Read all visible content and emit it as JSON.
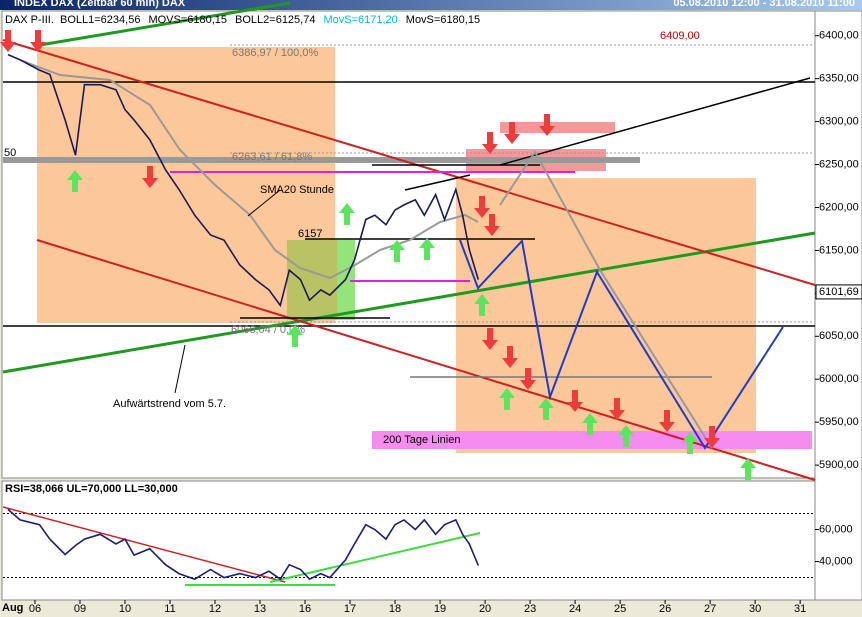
{
  "window_title": "INDEX DAX (Zeitbar 60 min) DAX",
  "date_range": "05.08.2010 12:00 - 31.08.2010 11:00",
  "chart_data": [
    {
      "type": "line",
      "title": "DAX P-III.",
      "indicators": [
        "BOLL1=6234,56",
        "MOVS=6180,15",
        "BOLL2=6125,74",
        "MovS=6171,20",
        "MovS=6180,15"
      ],
      "x": [
        -0.6,
        -0.33,
        0.1,
        0.33,
        0.67,
        0.9,
        1.1,
        1.45,
        1.8,
        2.0,
        2.2,
        2.55,
        2.9,
        3.2,
        3.55,
        3.9,
        4.2,
        4.55,
        4.9,
        5.2,
        5.45,
        5.65,
        5.9,
        6.1,
        6.35,
        6.55,
        6.9,
        7.1,
        7.35,
        7.55,
        7.8,
        8.0,
        8.2,
        8.45,
        8.65,
        8.9,
        9.1,
        9.35,
        9.5,
        9.65,
        9.85
      ],
      "series": [
        {
          "name": "DAX",
          "color": "#1a1a5a",
          "values": [
            6378,
            6372,
            6360,
            6355,
            6302,
            6261,
            6343,
            6343,
            6337,
            6314,
            6302,
            6279,
            6244,
            6221,
            6191,
            6168,
            6162,
            6133,
            6116,
            6104,
            6086,
            6127,
            6116,
            6092,
            6104,
            6098,
            6116,
            6139,
            6186,
            6191,
            6180,
            6197,
            6203,
            6209,
            6191,
            6215,
            6186,
            6221,
            6191,
            6151,
            6116
          ]
        }
      ],
      "xlim": [
        -0.71,
        17.33
      ],
      "ylim": [
        5885,
        6409
      ],
      "yticks": [
        {
          "value": 6400,
          "label": "6400,00"
        },
        {
          "value": 6350,
          "label": "6350,00"
        },
        {
          "value": 6300,
          "label": "6300,00"
        },
        {
          "value": 6250,
          "label": "6250,00"
        },
        {
          "value": 6200,
          "label": "6200,00"
        },
        {
          "value": 6150,
          "label": "6150,00"
        },
        {
          "value": 6100,
          "label": "6100,00"
        },
        {
          "value": 6050,
          "label": "6050,00"
        },
        {
          "value": 6000,
          "label": "6000,00"
        },
        {
          "value": 5950,
          "label": "5950,00"
        },
        {
          "value": 5900,
          "label": "5900,00"
        }
      ],
      "last_price": {
        "value": 6101.69,
        "label": "6101,69"
      },
      "annotations": [
        "6409,00",
        "6386,97 / 100,0%",
        "6263,61 / 61,8%",
        "50",
        "SMA20 Stunde",
        "6157",
        "6066,04 / 0,0%",
        "Aufwärtstrend vom 5.7.",
        "200 Tage Linien"
      ]
    },
    {
      "type": "line",
      "title": "RSI=38,066 UL=70,000 LL=30,000",
      "month_label": "Aug",
      "x": [
        -0.6,
        -0.33,
        0.1,
        0.33,
        0.67,
        0.9,
        1.1,
        1.45,
        1.8,
        2.0,
        2.2,
        2.55,
        2.9,
        3.2,
        3.55,
        3.9,
        4.2,
        4.55,
        4.9,
        5.2,
        5.45,
        5.65,
        5.9,
        6.1,
        6.35,
        6.55,
        6.9,
        7.1,
        7.35,
        7.55,
        7.8,
        8.0,
        8.2,
        8.45,
        8.65,
        8.9,
        9.1,
        9.35,
        9.5,
        9.65,
        9.85
      ],
      "series": [
        {
          "name": "RSI",
          "color": "#1c1c7a",
          "values": [
            72.5,
            66,
            63,
            54,
            44.4,
            50,
            54,
            57,
            51,
            54,
            44,
            48,
            38,
            32.5,
            29,
            35,
            30,
            32.5,
            30,
            34,
            29,
            38,
            35,
            29,
            32.5,
            30,
            41,
            51,
            63,
            60,
            54,
            63,
            66,
            60,
            66,
            57,
            63,
            66,
            57,
            51,
            37.5
          ]
        }
      ],
      "upper_limit": 70,
      "lower_limit": 30,
      "xlim": [
        -0.71,
        17.33
      ],
      "ylim": [
        16,
        89
      ],
      "yticks": [
        {
          "value": 60,
          "label": "60,000"
        },
        {
          "value": 40,
          "label": "40,000"
        }
      ],
      "xticks": [
        {
          "value": 0,
          "label": "06"
        },
        {
          "value": 1,
          "label": "09"
        },
        {
          "value": 2,
          "label": "10"
        },
        {
          "value": 3,
          "label": "11"
        },
        {
          "value": 4,
          "label": "12"
        },
        {
          "value": 5,
          "label": "13"
        },
        {
          "value": 6,
          "label": "16"
        },
        {
          "value": 7,
          "label": "17"
        },
        {
          "value": 8,
          "label": "18"
        },
        {
          "value": 9,
          "label": "19"
        },
        {
          "value": 10,
          "label": "20"
        },
        {
          "value": 11,
          "label": "23"
        },
        {
          "value": 12,
          "label": "24"
        },
        {
          "value": 13,
          "label": "25"
        },
        {
          "value": 14,
          "label": "26"
        },
        {
          "value": 15,
          "label": "27"
        },
        {
          "value": 16,
          "label": "30"
        },
        {
          "value": 17,
          "label": "31"
        }
      ]
    }
  ]
}
